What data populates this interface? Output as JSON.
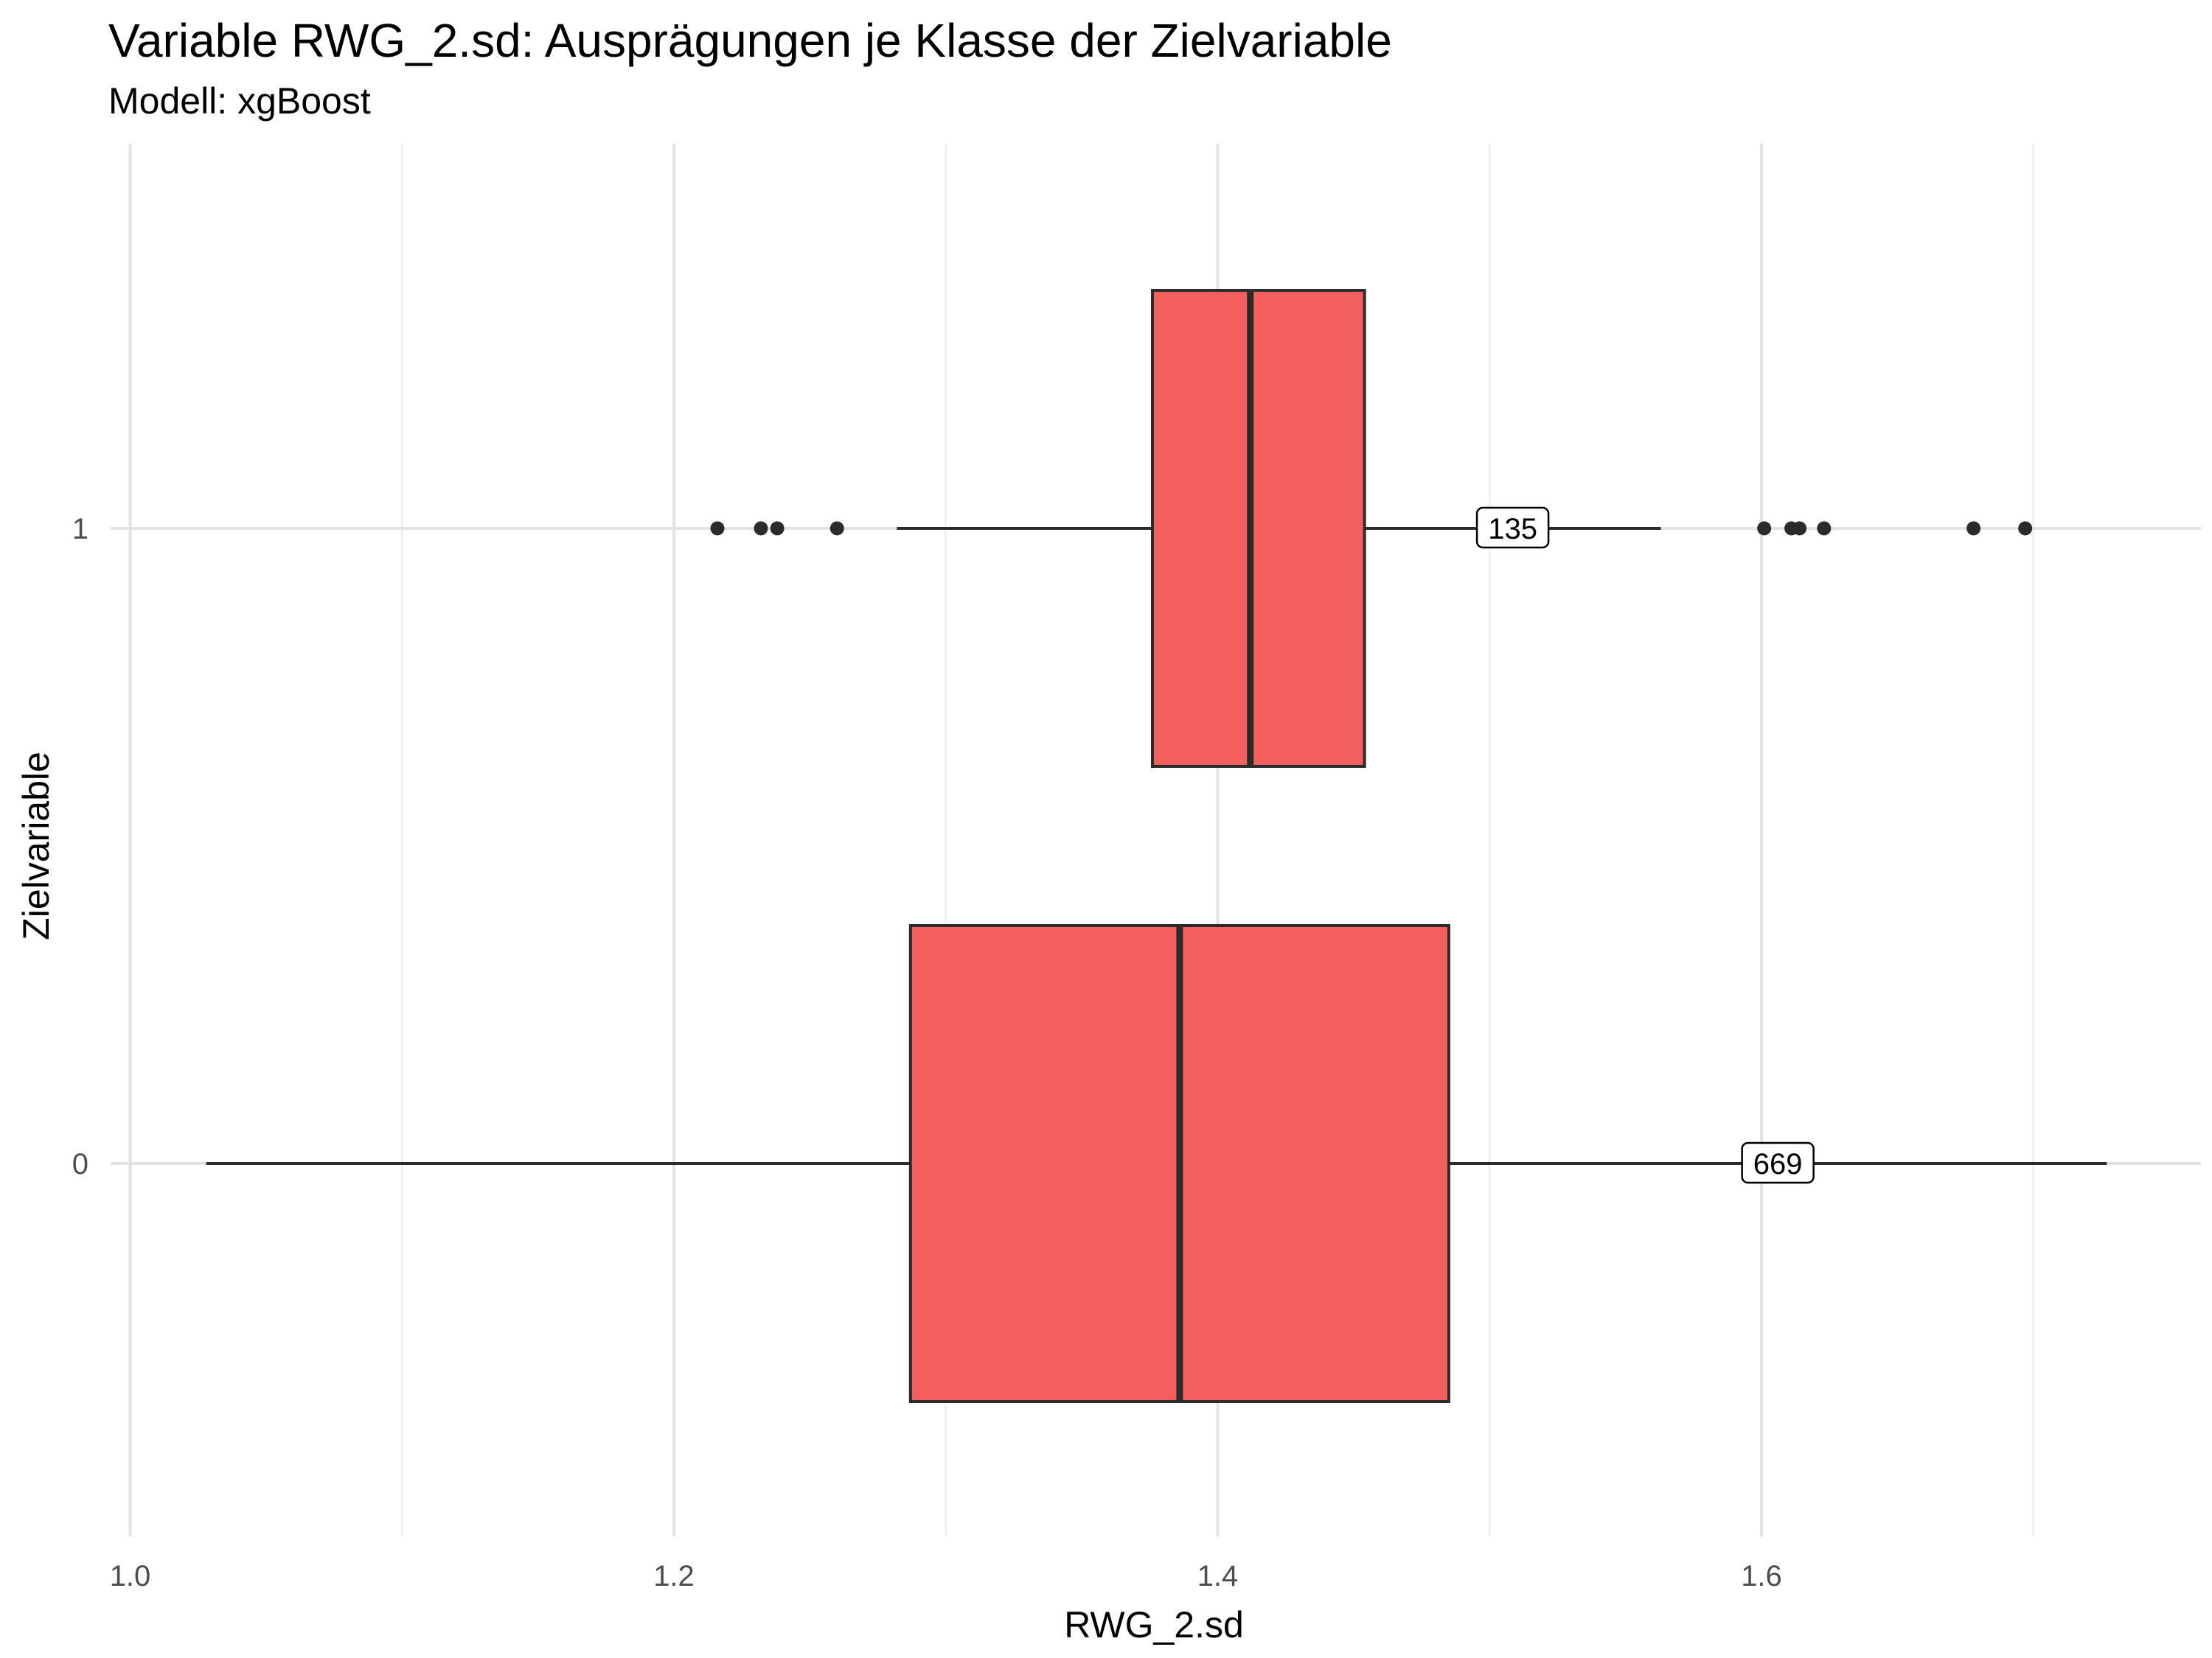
{
  "chart_data": {
    "type": "boxplot",
    "title": "Variable RWG_2.sd: Ausprägungen je Klasse der Zielvariable",
    "subtitle": "Modell: xgBoost",
    "xlabel": "RWG_2.sd",
    "ylabel": "Zielvariable",
    "xlim": [
      0.98,
      1.76
    ],
    "x_ticks": [
      1.0,
      1.2,
      1.4,
      1.6
    ],
    "x_tick_labels": [
      "1.0",
      "1.2",
      "1.4",
      "1.6"
    ],
    "categories": [
      "0",
      "1"
    ],
    "orientation": "horizontal",
    "grid": true,
    "fill_color": "#f25f5c",
    "outline_color": "#2b2b2b",
    "boxes": [
      {
        "category": "0",
        "whisker_low": 1.028,
        "q1": 1.287,
        "median": 1.386,
        "q3": 1.485,
        "whisker_high": 1.727,
        "n_label": "669",
        "outliers": []
      },
      {
        "category": "1",
        "whisker_low": 1.282,
        "q1": 1.376,
        "median": 1.412,
        "q3": 1.454,
        "whisker_high": 1.563,
        "n_label": "135",
        "outliers": [
          1.216,
          1.232,
          1.238,
          1.26,
          1.601,
          1.611,
          1.614,
          1.623,
          1.678,
          1.697
        ]
      }
    ]
  }
}
